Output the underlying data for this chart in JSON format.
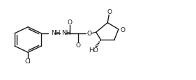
{
  "bg_color": "#ffffff",
  "line_color": "#1a1a1a",
  "lw": 1.0,
  "fs": 6.5,
  "fig_w": 2.81,
  "fig_h": 1.16,
  "dpi": 100,
  "xlim": [
    0,
    14
  ],
  "ylim": [
    0,
    7
  ]
}
